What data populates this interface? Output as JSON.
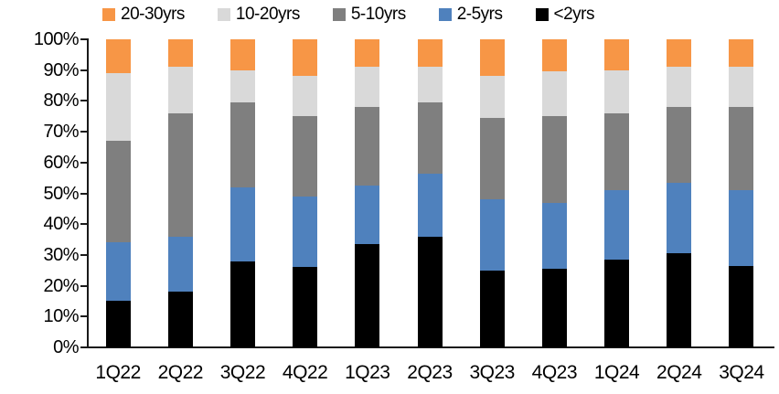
{
  "chart_data": {
    "type": "bar",
    "subtype": "stacked-100-percent",
    "title": "",
    "xlabel": "",
    "ylabel": "",
    "grid": false,
    "legend_position": "top",
    "background": "#ffffff",
    "axis_color": "#1a1a1a",
    "categories": [
      "1Q22",
      "2Q22",
      "3Q22",
      "4Q22",
      "1Q23",
      "2Q23",
      "3Q23",
      "4Q23",
      "1Q24",
      "2Q24",
      "3Q24"
    ],
    "series": [
      {
        "name": "<2yrs",
        "color": "#000000",
        "values": [
          15.0,
          18.0,
          28.0,
          26.0,
          33.5,
          36.0,
          25.0,
          25.5,
          28.5,
          30.5,
          26.5
        ]
      },
      {
        "name": "2-5yrs",
        "color": "#4F81BD",
        "values": [
          19.0,
          18.0,
          24.0,
          23.0,
          19.0,
          20.5,
          23.0,
          21.5,
          22.5,
          23.0,
          24.5
        ]
      },
      {
        "name": "5-10yrs",
        "color": "#7F7F7F",
        "values": [
          33.0,
          40.0,
          27.5,
          26.0,
          25.5,
          23.0,
          26.5,
          28.0,
          25.0,
          24.5,
          27.0
        ]
      },
      {
        "name": "10-20yrs",
        "color": "#D9D9D9",
        "values": [
          22.0,
          15.0,
          10.5,
          13.0,
          13.0,
          11.5,
          13.5,
          14.5,
          14.0,
          13.0,
          13.0
        ]
      },
      {
        "name": "20-30yrs",
        "color": "#F79646",
        "values": [
          11.0,
          9.0,
          10.0,
          12.0,
          9.0,
          9.0,
          12.0,
          10.5,
          10.0,
          9.0,
          9.0
        ]
      }
    ],
    "legend": [
      {
        "label": "20-30yrs",
        "color": "#F79646"
      },
      {
        "label": "10-20yrs",
        "color": "#D9D9D9"
      },
      {
        "label": "5-10yrs",
        "color": "#7F7F7F"
      },
      {
        "label": "2-5yrs",
        "color": "#4F81BD"
      },
      {
        "label": "<2yrs",
        "color": "#000000"
      }
    ],
    "y_axis": {
      "min": 0,
      "max": 100,
      "step": 10,
      "tick_labels": [
        "0%",
        "10%",
        "20%",
        "30%",
        "40%",
        "50%",
        "60%",
        "70%",
        "80%",
        "90%",
        "100%"
      ]
    }
  }
}
